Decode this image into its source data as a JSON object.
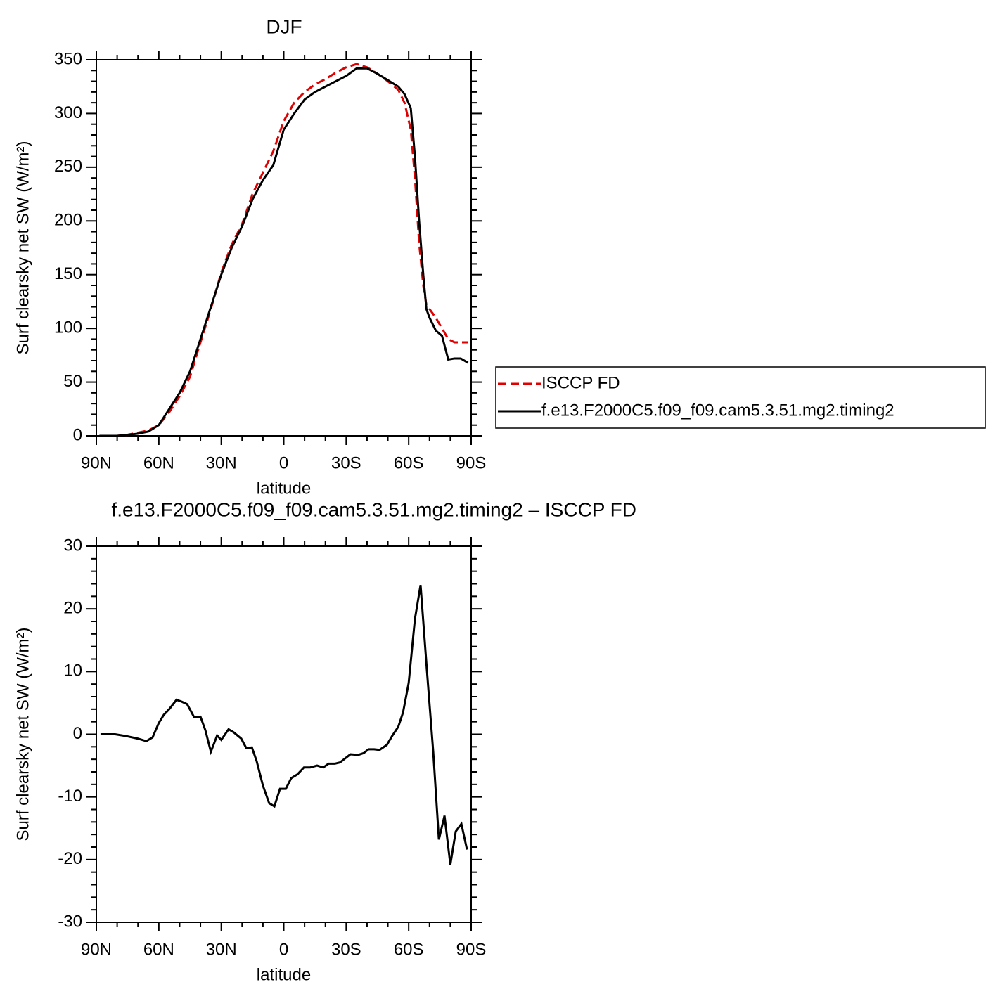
{
  "chart_data": [
    {
      "type": "line",
      "title": "DJF",
      "xlabel": "latitude",
      "ylabel": "Surf clearsky net SW (W/m²)",
      "x": [
        88.5,
        85,
        80,
        75,
        70,
        65,
        60,
        55,
        50,
        45,
        40,
        35,
        30,
        25,
        20,
        15,
        10,
        5,
        0,
        -5,
        -10,
        -15,
        -20,
        -25,
        -30,
        -35,
        -40,
        -45,
        -50,
        -55,
        -58,
        -61,
        -63,
        -65,
        -67,
        -68.5,
        -70,
        -73,
        -76,
        -79,
        -82,
        -85,
        -88.5
      ],
      "series": [
        {
          "name": "ISCCP FD",
          "color": "#e00000",
          "dash": true,
          "values": [
            0,
            0,
            0,
            1,
            3,
            5,
            10,
            22,
            37,
            55,
            87,
            118,
            152,
            178,
            197,
            225,
            245,
            265,
            293,
            310,
            320,
            327,
            332,
            338,
            343,
            346,
            343,
            337,
            330,
            322,
            310,
            285,
            240,
            180,
            140,
            122,
            118,
            110,
            100,
            90,
            87,
            87,
            87
          ]
        },
        {
          "name": "f.e13.F2000C5.f09_f09.cam5.3.51.mg2.timing2",
          "color": "#000000",
          "dash": false,
          "values": [
            0,
            0,
            0,
            1,
            2,
            4,
            10,
            25,
            40,
            60,
            90,
            120,
            150,
            175,
            195,
            220,
            238,
            252,
            285,
            300,
            313,
            320,
            325,
            330,
            335,
            342,
            342,
            337,
            331,
            325,
            318,
            305,
            260,
            200,
            150,
            118,
            110,
            98,
            93,
            71,
            72,
            72,
            68
          ]
        }
      ],
      "xlim": [
        90,
        -90
      ],
      "xticks": [
        {
          "value": 90,
          "label": "90N"
        },
        {
          "value": 60,
          "label": "60N"
        },
        {
          "value": 30,
          "label": "30N"
        },
        0,
        {
          "value": -30,
          "label": "30S"
        },
        {
          "value": -60,
          "label": "60S"
        },
        {
          "value": -90,
          "label": "90S"
        }
      ],
      "ylim": [
        0,
        350
      ],
      "yticks": [
        0,
        50,
        100,
        150,
        200,
        250,
        300,
        350
      ],
      "legend": "right"
    },
    {
      "type": "line",
      "title": "f.e13.F2000C5.f09_f09.cam5.3.51.mg2.timing2 – ISCCP FD",
      "xlabel": "latitude",
      "ylabel": "Surf clearsky net SW (W/m²)",
      "x": [
        88,
        81,
        75.5,
        70,
        66,
        63,
        60,
        57.6,
        55,
        51.5,
        49,
        46.4,
        43,
        40,
        37.6,
        35,
        32,
        30,
        26.5,
        24,
        20.4,
        18,
        15.3,
        13,
        10,
        7,
        4.5,
        1.8,
        -1,
        -3.6,
        -6.6,
        -9.7,
        -12.7,
        -16,
        -19,
        -21.5,
        -24.5,
        -27,
        -32,
        -35.7,
        -38.4,
        -40.7,
        -43.4,
        -46,
        -49.5,
        -52,
        -55,
        -57.3,
        -60,
        -63,
        -65.7,
        -68.7,
        -71.8,
        -74.5,
        -77.2,
        -80,
        -82.6,
        -85.3,
        -88
      ],
      "series": [
        {
          "color": "#000000",
          "values": [
            0,
            0,
            -0.3,
            -0.7,
            -1.1,
            -0.5,
            1.8,
            3.1,
            4,
            5.5,
            5.2,
            4.8,
            2.7,
            2.8,
            0.6,
            -2.8,
            -0.2,
            -0.9,
            0.8,
            0.3,
            -0.7,
            -2.2,
            -2.1,
            -4.3,
            -8.2,
            -11,
            -11.5,
            -8.7,
            -8.7,
            -7,
            -6.4,
            -5.3,
            -5.3,
            -5,
            -5.3,
            -4.7,
            -4.7,
            -4.5,
            -3.2,
            -3.3,
            -3,
            -2.4,
            -2.4,
            -2.5,
            -1.7,
            -0.3,
            1.2,
            3.5,
            8.2,
            18.4,
            23.8,
            10.4,
            -2.9,
            -16.8,
            -13,
            -20.8,
            -15.5,
            -14.3,
            -18.4
          ]
        }
      ],
      "xlim": [
        90,
        -90
      ],
      "xticks": [
        {
          "value": 90,
          "label": "90N"
        },
        {
          "value": 60,
          "label": "60N"
        },
        {
          "value": 30,
          "label": "30N"
        },
        0,
        {
          "value": -30,
          "label": "30S"
        },
        {
          "value": -60,
          "label": "60S"
        },
        {
          "value": -90,
          "label": "90S"
        }
      ],
      "ylim": [
        -30,
        30
      ],
      "yticks": [
        -30,
        -20,
        -10,
        0,
        10,
        20,
        30
      ]
    }
  ]
}
